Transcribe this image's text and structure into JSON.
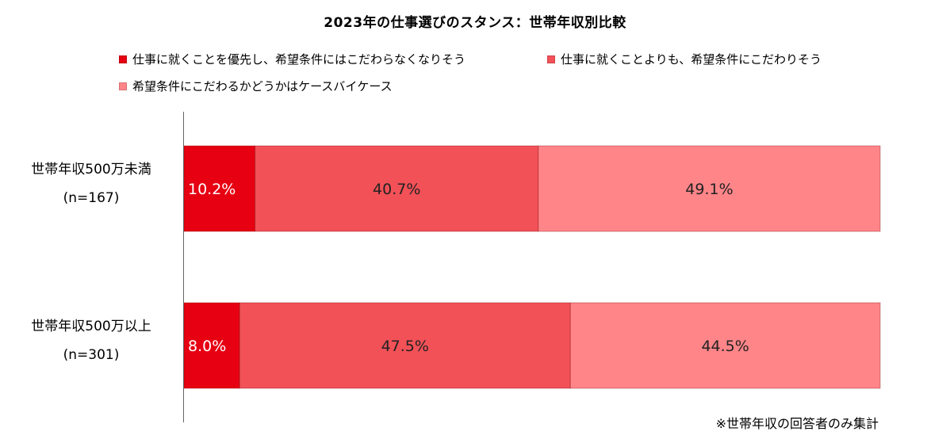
{
  "chart_data": {
    "type": "bar",
    "orientation": "horizontal",
    "stacked": "percent",
    "title": "2023年の仕事選びのスタンス：世帯年収別比較",
    "categories": [
      {
        "label": "世帯年収500万未満",
        "n": "(n=167)"
      },
      {
        "label": "世帯年収500万以上",
        "n": "(n=301)"
      }
    ],
    "series": [
      {
        "name": "仕事に就くことを優先し、希望条件にはこだわらなくなりそう",
        "color": "#e60012",
        "values": [
          10.2,
          8.0
        ],
        "labels": [
          "10.2%",
          "8.0%"
        ]
      },
      {
        "name": "仕事に就くことよりも、希望条件にこだわりそう",
        "color": "#f25157",
        "values": [
          40.7,
          47.5
        ],
        "labels": [
          "40.7%",
          "47.5%"
        ]
      },
      {
        "name": "希望条件にこだわるかどうかはケースバイケース",
        "color": "#ff8589",
        "values": [
          49.1,
          44.5
        ],
        "labels": [
          "49.1%",
          "44.5%"
        ]
      }
    ],
    "xlim": [
      0,
      100
    ],
    "legend_position": "top",
    "grid": false
  },
  "footnote": "※世帯年収の回答者のみ集計"
}
